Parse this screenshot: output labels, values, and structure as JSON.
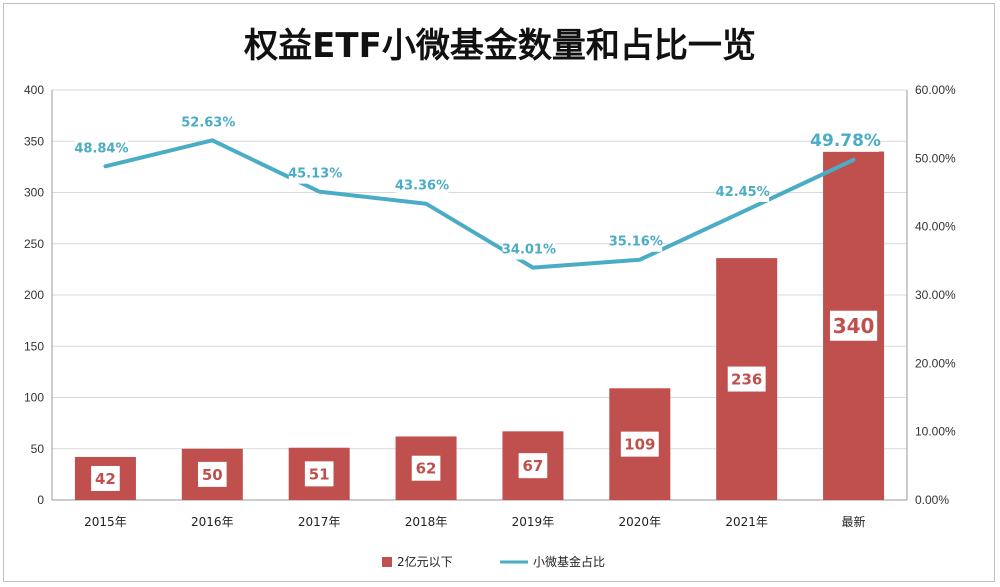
{
  "chart_data": {
    "type": "bar",
    "title": "权益ETF小微基金数量和占比一览",
    "categories": [
      "2015年",
      "2016年",
      "2017年",
      "2018年",
      "2019年",
      "2020年",
      "2021年",
      "最新"
    ],
    "series": [
      {
        "name": "2亿元以下",
        "type": "bar",
        "axis": "left",
        "values": [
          42,
          50,
          51,
          62,
          67,
          109,
          236,
          340
        ],
        "labels": [
          "42",
          "50",
          "51",
          "62",
          "67",
          "109",
          "236",
          "340"
        ],
        "color": "#c0504d"
      },
      {
        "name": "小微基金占比",
        "type": "line",
        "axis": "right",
        "values": [
          48.84,
          52.63,
          45.13,
          43.36,
          34.01,
          35.16,
          42.45,
          49.78
        ],
        "labels": [
          "48.84%",
          "52.63%",
          "45.13%",
          "43.36%",
          "34.01%",
          "35.16%",
          "42.45%",
          "49.78%"
        ],
        "color": "#4bacc6"
      }
    ],
    "y_left": {
      "min": 0,
      "max": 400,
      "ticks": [
        "0",
        "50",
        "100",
        "150",
        "200",
        "250",
        "300",
        "350",
        "400"
      ]
    },
    "y_right": {
      "min": 0,
      "max": 60,
      "ticks": [
        "0.00%",
        "10.00%",
        "20.00%",
        "30.00%",
        "40.00%",
        "50.00%",
        "60.00%"
      ]
    },
    "grid": true,
    "legend": "bottom-center"
  }
}
